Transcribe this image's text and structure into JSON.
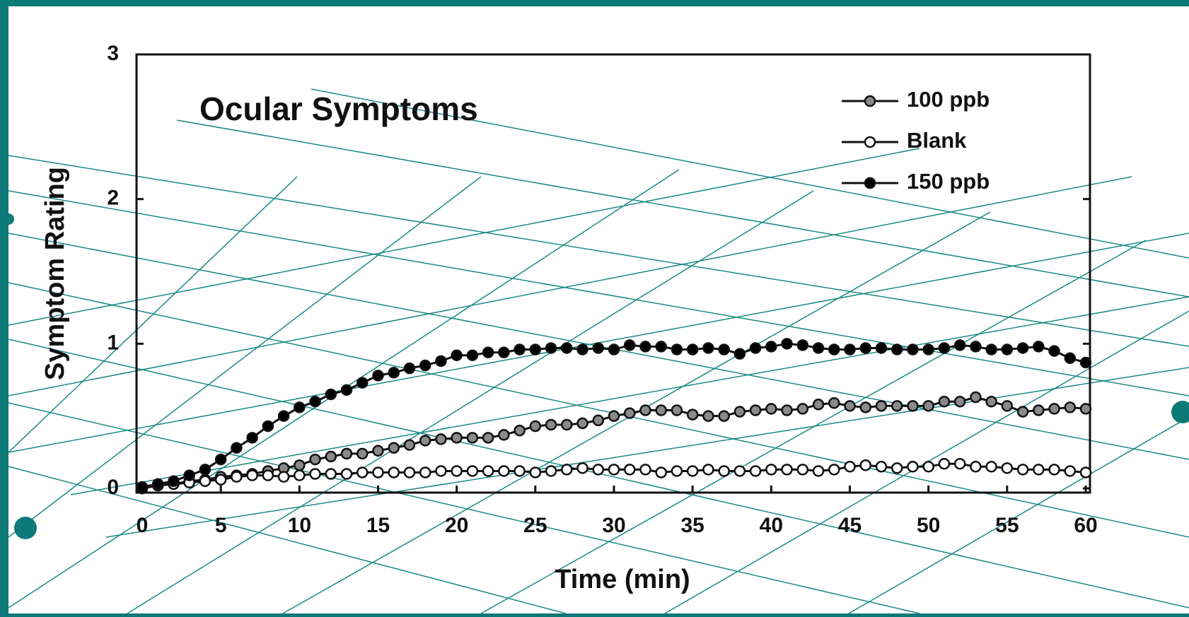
{
  "chart_data": {
    "type": "line",
    "title": "Ocular Symptoms",
    "x_label": "Time (min)",
    "y_label": "Symptom Rating",
    "x": [
      0,
      1,
      2,
      3,
      4,
      5,
      6,
      7,
      8,
      9,
      10,
      11,
      12,
      13,
      14,
      15,
      16,
      17,
      18,
      19,
      20,
      21,
      22,
      23,
      24,
      25,
      26,
      27,
      28,
      29,
      30,
      31,
      32,
      33,
      34,
      35,
      36,
      37,
      38,
      39,
      40,
      41,
      42,
      43,
      44,
      45,
      46,
      47,
      48,
      49,
      50,
      51,
      52,
      53,
      54,
      55,
      56,
      57,
      58,
      59,
      60
    ],
    "xlim": [
      0,
      60
    ],
    "xticks": [
      0,
      5,
      10,
      15,
      20,
      25,
      30,
      35,
      40,
      45,
      50,
      55,
      60
    ],
    "ylim": [
      0,
      3
    ],
    "yticks": [
      0,
      1,
      2,
      3
    ],
    "legend": "upper right",
    "series": [
      {
        "name": "100 ppb",
        "color": "#8a8a8a",
        "values": [
          0,
          0.02,
          0.03,
          0.05,
          0.06,
          0.08,
          0.09,
          0.1,
          0.12,
          0.14,
          0.16,
          0.2,
          0.22,
          0.24,
          0.24,
          0.26,
          0.28,
          0.3,
          0.33,
          0.34,
          0.35,
          0.35,
          0.35,
          0.37,
          0.4,
          0.43,
          0.44,
          0.44,
          0.45,
          0.47,
          0.5,
          0.52,
          0.54,
          0.54,
          0.54,
          0.51,
          0.5,
          0.5,
          0.53,
          0.54,
          0.55,
          0.54,
          0.55,
          0.58,
          0.59,
          0.57,
          0.56,
          0.57,
          0.57,
          0.57,
          0.57,
          0.6,
          0.6,
          0.63,
          0.6,
          0.57,
          0.53,
          0.54,
          0.55,
          0.56,
          0.55
        ]
      },
      {
        "name": "Blank",
        "color": "#ffffff",
        "values": [
          0,
          0.02,
          0.03,
          0.04,
          0.05,
          0.06,
          0.08,
          0.09,
          0.09,
          0.08,
          0.09,
          0.1,
          0.1,
          0.1,
          0.11,
          0.11,
          0.11,
          0.11,
          0.11,
          0.12,
          0.12,
          0.12,
          0.12,
          0.12,
          0.12,
          0.11,
          0.12,
          0.13,
          0.14,
          0.13,
          0.13,
          0.13,
          0.13,
          0.11,
          0.12,
          0.12,
          0.13,
          0.12,
          0.12,
          0.12,
          0.13,
          0.13,
          0.13,
          0.12,
          0.13,
          0.15,
          0.16,
          0.15,
          0.14,
          0.15,
          0.15,
          0.17,
          0.17,
          0.15,
          0.15,
          0.14,
          0.13,
          0.13,
          0.13,
          0.12,
          0.11
        ]
      },
      {
        "name": "150 ppb",
        "color": "#000000",
        "values": [
          0.01,
          0.03,
          0.05,
          0.09,
          0.13,
          0.2,
          0.28,
          0.35,
          0.43,
          0.5,
          0.56,
          0.6,
          0.65,
          0.68,
          0.73,
          0.78,
          0.8,
          0.83,
          0.85,
          0.88,
          0.92,
          0.92,
          0.94,
          0.94,
          0.96,
          0.96,
          0.97,
          0.97,
          0.96,
          0.97,
          0.96,
          0.99,
          0.98,
          0.98,
          0.96,
          0.96,
          0.97,
          0.96,
          0.93,
          0.97,
          0.98,
          1.0,
          0.99,
          0.97,
          0.96,
          0.96,
          0.97,
          0.97,
          0.96,
          0.96,
          0.96,
          0.97,
          0.99,
          0.98,
          0.96,
          0.96,
          0.97,
          0.98,
          0.95,
          0.9,
          0.87
        ]
      }
    ]
  }
}
